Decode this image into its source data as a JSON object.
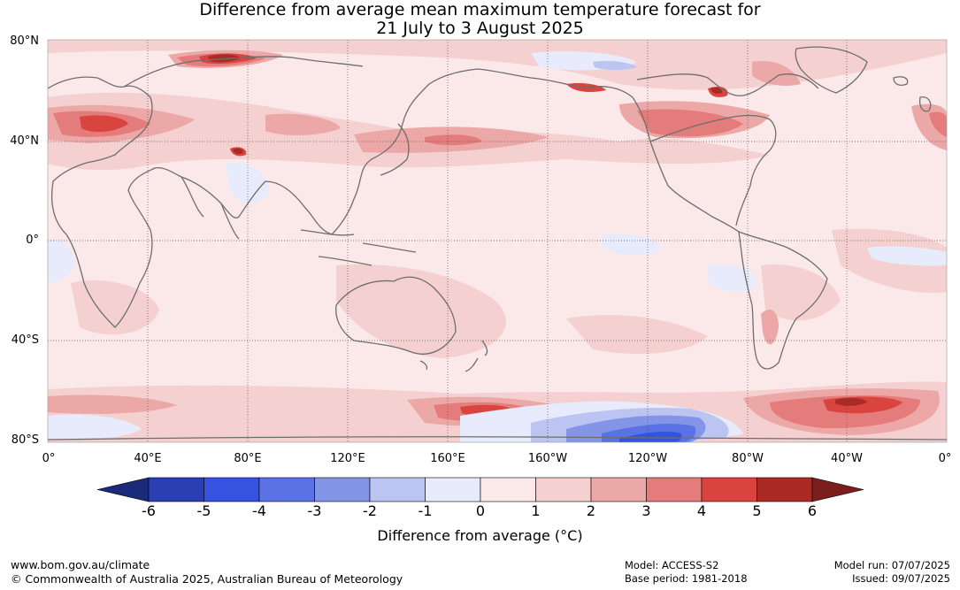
{
  "title_line1": "Difference from average mean maximum temperature forecast for",
  "title_line2": "21 July to 3 August 2025",
  "lat_labels": [
    "80°N",
    "40°N",
    "0°",
    "40°S",
    "80°S"
  ],
  "lon_labels": [
    "0°",
    "40°E",
    "80°E",
    "120°E",
    "160°E",
    "160°W",
    "120°W",
    "80°W",
    "40°W",
    "0°"
  ],
  "colorbar": {
    "ticks": [
      "-6",
      "-5",
      "-4",
      "-3",
      "-2",
      "-1",
      "0",
      "1",
      "2",
      "3",
      "4",
      "5",
      "6"
    ],
    "label": "Difference from average (°C)",
    "colors": [
      "#1c2a7a",
      "#2a3fb3",
      "#3552e0",
      "#5a72e3",
      "#8495e8",
      "#bcc4f2",
      "#e8ebfb",
      "#fbe9e9",
      "#f4d0d0",
      "#eca7a7",
      "#e57c7c",
      "#d9443f",
      "#aa2b26",
      "#7a1f1c"
    ]
  },
  "footer": {
    "url": "www.bom.gov.au/climate",
    "copyright": "© Commonwealth of Australia 2025, Australian Bureau of Meteorology",
    "model": "Model: ACCESS-S2",
    "base_period": "Base period: 1981-2018",
    "model_run": "Model run: 07/07/2025",
    "issued": "Issued: 09/07/2025"
  }
}
